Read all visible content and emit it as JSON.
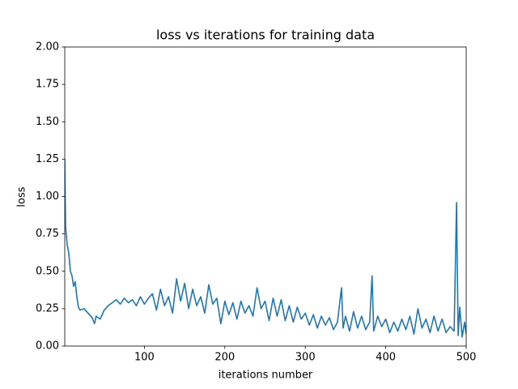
{
  "chart_data": {
    "type": "line",
    "title": "loss vs iterations for training data",
    "xlabel": "iterations number",
    "ylabel": "loss",
    "color": "#1f77b4",
    "x": [
      1,
      2,
      4,
      6,
      8,
      10,
      12,
      14,
      16,
      18,
      20,
      25,
      30,
      35,
      38,
      40,
      45,
      50,
      55,
      60,
      65,
      70,
      75,
      80,
      85,
      90,
      95,
      100,
      105,
      110,
      115,
      120,
      125,
      130,
      135,
      140,
      145,
      150,
      155,
      160,
      165,
      170,
      175,
      180,
      185,
      190,
      195,
      200,
      205,
      210,
      215,
      220,
      225,
      230,
      235,
      240,
      245,
      250,
      255,
      260,
      265,
      270,
      275,
      280,
      285,
      290,
      295,
      300,
      305,
      310,
      315,
      320,
      325,
      330,
      335,
      340,
      345,
      347,
      350,
      355,
      360,
      365,
      370,
      375,
      380,
      383,
      385,
      390,
      395,
      400,
      405,
      410,
      415,
      420,
      425,
      430,
      435,
      440,
      445,
      450,
      455,
      460,
      465,
      470,
      475,
      480,
      485,
      488,
      490,
      492,
      495,
      498,
      500
    ],
    "values": [
      1.25,
      0.8,
      0.68,
      0.62,
      0.5,
      0.47,
      0.4,
      0.43,
      0.33,
      0.26,
      0.24,
      0.25,
      0.22,
      0.19,
      0.15,
      0.2,
      0.18,
      0.24,
      0.27,
      0.29,
      0.31,
      0.28,
      0.32,
      0.29,
      0.31,
      0.27,
      0.33,
      0.28,
      0.32,
      0.35,
      0.24,
      0.38,
      0.27,
      0.33,
      0.22,
      0.45,
      0.3,
      0.42,
      0.25,
      0.38,
      0.27,
      0.33,
      0.22,
      0.41,
      0.28,
      0.32,
      0.15,
      0.3,
      0.21,
      0.29,
      0.18,
      0.3,
      0.22,
      0.27,
      0.2,
      0.39,
      0.25,
      0.3,
      0.17,
      0.32,
      0.2,
      0.31,
      0.17,
      0.27,
      0.16,
      0.26,
      0.18,
      0.22,
      0.14,
      0.21,
      0.12,
      0.2,
      0.14,
      0.19,
      0.11,
      0.16,
      0.39,
      0.12,
      0.2,
      0.1,
      0.23,
      0.12,
      0.2,
      0.11,
      0.16,
      0.47,
      0.1,
      0.2,
      0.13,
      0.18,
      0.09,
      0.16,
      0.1,
      0.18,
      0.11,
      0.2,
      0.08,
      0.25,
      0.12,
      0.18,
      0.09,
      0.2,
      0.1,
      0.18,
      0.09,
      0.13,
      0.1,
      0.96,
      0.07,
      0.26,
      0.06,
      0.16,
      0.08
    ],
    "xlim": [
      1,
      500
    ],
    "xticks": [
      100,
      200,
      300,
      400,
      500
    ],
    "ylim": [
      0,
      2
    ],
    "yticks": [
      {
        "value": 0,
        "label": "0.00"
      },
      {
        "value": 0.25,
        "label": "0.25"
      },
      {
        "value": 0.5,
        "label": "0.50"
      },
      {
        "value": 0.75,
        "label": "0.75"
      },
      {
        "value": 1,
        "label": "1.00"
      },
      {
        "value": 1.25,
        "label": "1.25"
      },
      {
        "value": 1.5,
        "label": "1.50"
      },
      {
        "value": 1.75,
        "label": "1.75"
      },
      {
        "value": 2,
        "label": "2.00"
      }
    ]
  }
}
